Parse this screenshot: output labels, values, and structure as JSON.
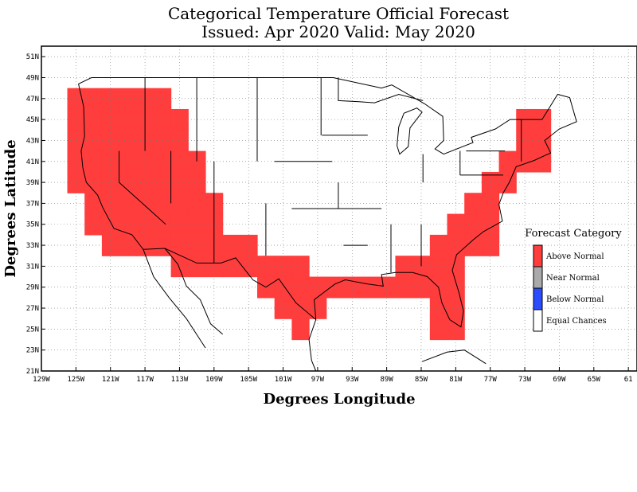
{
  "title": {
    "line1": "Categorical Temperature Official Forecast",
    "line2": "Issued: Apr 2020 Valid: May 2020"
  },
  "axes": {
    "xlabel": "Degrees Longitude",
    "ylabel": "Degrees Latitude",
    "x_ticks": [
      "129W",
      "125W",
      "121W",
      "117W",
      "113W",
      "109W",
      "105W",
      "101W",
      "97W",
      "93W",
      "89W",
      "85W",
      "81W",
      "77W",
      "73W",
      "69W",
      "65W",
      "61"
    ],
    "y_ticks": [
      "21N",
      "23N",
      "25N",
      "27N",
      "29N",
      "31N",
      "33N",
      "35N",
      "37N",
      "39N",
      "41N",
      "43N",
      "45N",
      "47N",
      "49N",
      "51N"
    ],
    "lon_range": [
      -129,
      -60
    ],
    "lat_range": [
      21,
      52
    ],
    "grid": true
  },
  "legend": {
    "title": "Forecast Category",
    "items": [
      {
        "label": "Above Normal",
        "color": "#ff3d3d"
      },
      {
        "label": "Near Normal",
        "color": "#aaaaaa"
      },
      {
        "label": "Below Normal",
        "color": "#2a4dff"
      },
      {
        "label": "Equal Chances",
        "color": "#ffffff"
      }
    ]
  },
  "forecast": {
    "category": "Above Normal",
    "color": "#ff3d3d",
    "cells_2deg": [
      [
        -125,
        47
      ],
      [
        -123,
        47
      ],
      [
        -121,
        47
      ],
      [
        -119,
        47
      ],
      [
        -117,
        47
      ],
      [
        -115,
        47
      ],
      [
        -125,
        45
      ],
      [
        -123,
        45
      ],
      [
        -121,
        45
      ],
      [
        -119,
        45
      ],
      [
        -117,
        45
      ],
      [
        -115,
        45
      ],
      [
        -113,
        45
      ],
      [
        -125,
        43
      ],
      [
        -123,
        43
      ],
      [
        -121,
        43
      ],
      [
        -119,
        43
      ],
      [
        -117,
        43
      ],
      [
        -115,
        43
      ],
      [
        -113,
        43
      ],
      [
        -125,
        41
      ],
      [
        -123,
        41
      ],
      [
        -121,
        41
      ],
      [
        -119,
        41
      ],
      [
        -117,
        41
      ],
      [
        -115,
        41
      ],
      [
        -113,
        41
      ],
      [
        -111,
        41
      ],
      [
        -125,
        39
      ],
      [
        -123,
        39
      ],
      [
        -121,
        39
      ],
      [
        -119,
        39
      ],
      [
        -117,
        39
      ],
      [
        -115,
        39
      ],
      [
        -113,
        39
      ],
      [
        -111,
        39
      ],
      [
        -123,
        37
      ],
      [
        -121,
        37
      ],
      [
        -119,
        37
      ],
      [
        -117,
        37
      ],
      [
        -115,
        37
      ],
      [
        -113,
        37
      ],
      [
        -111,
        37
      ],
      [
        -109,
        37
      ],
      [
        -123,
        35
      ],
      [
        -121,
        35
      ],
      [
        -119,
        35
      ],
      [
        -117,
        35
      ],
      [
        -115,
        35
      ],
      [
        -113,
        35
      ],
      [
        -111,
        35
      ],
      [
        -109,
        35
      ],
      [
        -121,
        33
      ],
      [
        -119,
        33
      ],
      [
        -117,
        33
      ],
      [
        -115,
        33
      ],
      [
        -113,
        33
      ],
      [
        -111,
        33
      ],
      [
        -109,
        33
      ],
      [
        -107,
        33
      ],
      [
        -105,
        33
      ],
      [
        -113,
        31
      ],
      [
        -111,
        31
      ],
      [
        -109,
        31
      ],
      [
        -107,
        31
      ],
      [
        -105,
        31
      ],
      [
        -103,
        31
      ],
      [
        -101,
        31
      ],
      [
        -99,
        31
      ],
      [
        -103,
        29
      ],
      [
        -101,
        29
      ],
      [
        -99,
        29
      ],
      [
        -97,
        29
      ],
      [
        -95,
        29
      ],
      [
        -93,
        29
      ],
      [
        -91,
        29
      ],
      [
        -89,
        29
      ],
      [
        -87,
        29
      ],
      [
        -85,
        29
      ],
      [
        -83,
        29
      ],
      [
        -81,
        29
      ],
      [
        -101,
        27
      ],
      [
        -99,
        27
      ],
      [
        -97,
        27
      ],
      [
        -83,
        27
      ],
      [
        -81,
        27
      ],
      [
        -99,
        25
      ],
      [
        -83,
        25
      ],
      [
        -81,
        25
      ],
      [
        -83,
        31
      ],
      [
        -81,
        31
      ],
      [
        -87,
        31
      ],
      [
        -85,
        31
      ],
      [
        -83,
        33
      ],
      [
        -81,
        33
      ],
      [
        -79,
        33
      ],
      [
        -77,
        33
      ],
      [
        -81,
        35
      ],
      [
        -79,
        35
      ],
      [
        -77,
        35
      ],
      [
        -79,
        37
      ],
      [
        -77,
        37
      ],
      [
        -77,
        39
      ],
      [
        -75,
        39
      ],
      [
        -75,
        41
      ],
      [
        -73,
        41
      ],
      [
        -71,
        41
      ],
      [
        -73,
        43
      ],
      [
        -71,
        43
      ],
      [
        -73,
        45
      ],
      [
        -71,
        45
      ]
    ]
  }
}
